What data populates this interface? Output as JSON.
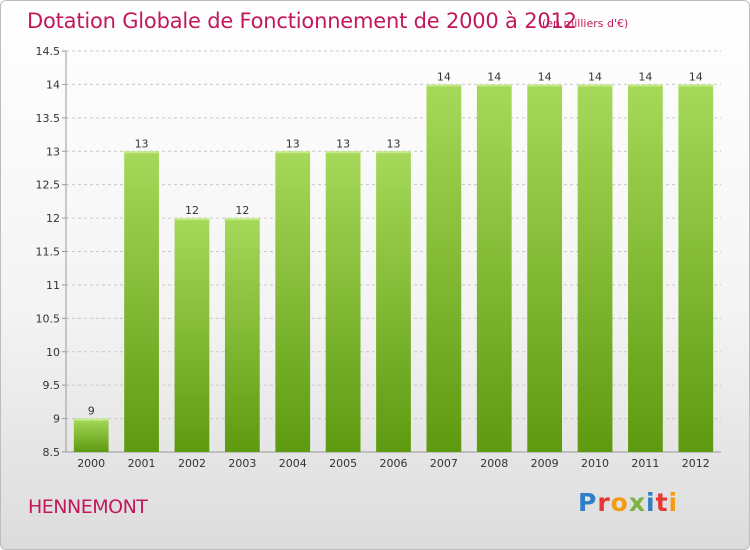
{
  "title": "Dotation Globale de Fonctionnement de 2000 à 2012",
  "subtitle": "(en milliers d'€)",
  "place": "HENNEMONT",
  "logo": {
    "text": "Proxiti",
    "letters": [
      {
        "ch": "P",
        "color": "#2e7fc8"
      },
      {
        "ch": "r",
        "color": "#e53935"
      },
      {
        "ch": "o",
        "color": "#f39c12"
      },
      {
        "ch": "x",
        "color": "#7cb342"
      },
      {
        "ch": "i",
        "color": "#2e7fc8"
      },
      {
        "ch": "t",
        "color": "#e53935"
      },
      {
        "ch": "i",
        "color": "#f39c12"
      }
    ]
  },
  "colors": {
    "accent": "#c2185b",
    "bar_top": "#a6d95a",
    "bar_bottom": "#5e9a10",
    "grid": "#c8c8c8",
    "axis_text": "#333333"
  },
  "chart_data": {
    "type": "bar",
    "title": "Dotation Globale de Fonctionnement de 2000 à 2012",
    "subtitle": "(en milliers d'€)",
    "xlabel": "",
    "ylabel": "",
    "categories": [
      "2000",
      "2001",
      "2002",
      "2003",
      "2004",
      "2005",
      "2006",
      "2007",
      "2008",
      "2009",
      "2010",
      "2011",
      "2012"
    ],
    "values": [
      9,
      13,
      12,
      12,
      13,
      13,
      13,
      14,
      14,
      14,
      14,
      14,
      14
    ],
    "value_labels": [
      "9",
      "13",
      "12",
      "12",
      "13",
      "13",
      "13",
      "14",
      "14",
      "14",
      "14",
      "14",
      "14"
    ],
    "ylim": [
      8.5,
      14.5
    ],
    "yticks": [
      8.5,
      9,
      9.5,
      10,
      10.5,
      11,
      11.5,
      12,
      12.5,
      13,
      13.5,
      14,
      14.5
    ],
    "ytick_labels": [
      "8.5",
      "9",
      "9.5",
      "10",
      "10.5",
      "11",
      "11.5",
      "12",
      "12.5",
      "13",
      "13.5",
      "14",
      "14.5"
    ],
    "grid": "horizontal dashed",
    "legend": "none"
  }
}
